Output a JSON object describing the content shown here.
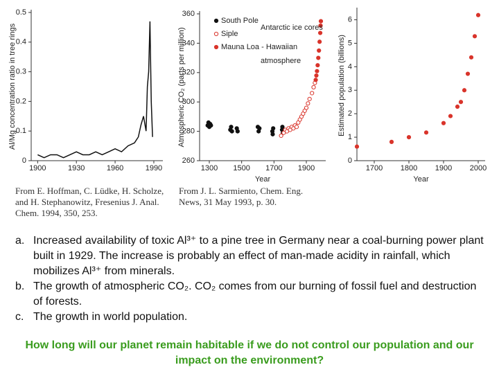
{
  "chart_data": [
    {
      "type": "line",
      "ylabel": "Al/Mg concentration ratio in tree rings",
      "xlim": [
        1895,
        1997
      ],
      "xticks": [
        1900,
        1930,
        1960,
        1990
      ],
      "ylim": [
        0,
        0.5
      ],
      "yticks": [
        0,
        0.1,
        0.2,
        0.3,
        0.4,
        0.5
      ],
      "series": [
        {
          "color": "#111111",
          "x": [
            1900,
            1905,
            1910,
            1915,
            1920,
            1925,
            1930,
            1935,
            1940,
            1945,
            1950,
            1955,
            1960,
            1965,
            1970,
            1975,
            1978,
            1980,
            1982,
            1984,
            1985,
            1986,
            1987,
            1988,
            1989
          ],
          "values": [
            0.02,
            0.01,
            0.02,
            0.02,
            0.01,
            0.02,
            0.03,
            0.02,
            0.02,
            0.03,
            0.02,
            0.03,
            0.04,
            0.03,
            0.05,
            0.06,
            0.08,
            0.12,
            0.15,
            0.1,
            0.25,
            0.3,
            0.47,
            0.2,
            0.08
          ]
        }
      ]
    },
    {
      "type": "scatter",
      "ylabel": "Atmospheric CO₂ (parts per million)",
      "xlabel": "Year",
      "xlim": [
        1240,
        2020
      ],
      "xticks": [
        1300,
        1500,
        1700,
        1900
      ],
      "ylim": [
        260,
        360
      ],
      "yticks": [
        260,
        280,
        300,
        320,
        340,
        360
      ],
      "annotations": [
        {
          "text": "Antarctic ice cores",
          "color": "#d9342b"
        },
        {
          "text": "atmosphere",
          "color": "#111111"
        }
      ],
      "series": [
        {
          "name": "South Pole",
          "color": "#111111",
          "marker": "filled",
          "x": [
            1290,
            1295,
            1300,
            1305,
            1310,
            1430,
            1435,
            1440,
            1470,
            1475,
            1600,
            1605,
            1610,
            1690,
            1692,
            1695,
            1750,
            1752,
            1755
          ],
          "values": [
            284,
            286,
            283,
            285,
            284,
            281,
            283,
            280,
            282,
            280,
            283,
            280,
            282,
            280,
            278,
            282,
            281,
            283,
            279
          ]
        },
        {
          "name": "Siple",
          "color": "#d9342b",
          "marker": "open",
          "x": [
            1744,
            1760,
            1770,
            1780,
            1790,
            1800,
            1810,
            1820,
            1830,
            1840,
            1850,
            1860,
            1870,
            1880,
            1890,
            1900,
            1910,
            1920,
            1935,
            1945,
            1953
          ],
          "values": [
            277,
            279,
            281,
            280,
            282,
            281,
            283,
            282,
            284,
            283,
            286,
            288,
            290,
            292,
            294,
            296,
            299,
            302,
            306,
            310,
            313
          ]
        },
        {
          "name": "Mauna Loa - Hawaiian",
          "color": "#d9342b",
          "marker": "filled",
          "x": [
            1958,
            1962,
            1966,
            1970,
            1974,
            1978,
            1982,
            1986,
            1988,
            1990
          ],
          "values": [
            315,
            318,
            321,
            325,
            330,
            335,
            341,
            347,
            352,
            355
          ]
        }
      ]
    },
    {
      "type": "scatter",
      "ylabel": "Estimated population (billions)",
      "xlabel": "Year",
      "xlim": [
        1650,
        2020
      ],
      "xticks": [
        1700,
        1800,
        1900,
        2000
      ],
      "ylim": [
        0,
        6.4
      ],
      "yticks": [
        0,
        1,
        2,
        3,
        4,
        5,
        6
      ],
      "series": [
        {
          "color": "#d9342b",
          "marker": "filled",
          "x": [
            1650,
            1750,
            1800,
            1850,
            1900,
            1920,
            1940,
            1950,
            1960,
            1970,
            1980,
            1990,
            2000
          ],
          "values": [
            0.6,
            0.8,
            1.0,
            1.2,
            1.6,
            1.9,
            2.3,
            2.5,
            3.0,
            3.7,
            4.4,
            5.3,
            6.2
          ]
        }
      ]
    }
  ],
  "credits": [
    "From E. Hoffman, C. Lüdke, H. Scholze, and H. Stephanowitz, Fresenius J. Anal. Chem. 1994, 350, 253.",
    "From J. L. Sarmiento, Chem. Eng. News, 31 May 1993, p. 30."
  ],
  "captions": [
    {
      "marker": "a.",
      "text": "Increased availability of toxic Al³⁺ to a pine tree in Germany near a coal-burning power plant built in 1929. The increase is probably an effect of man-made acidity in rainfall, which mobilizes Al³⁺ from minerals."
    },
    {
      "marker": "b.",
      "text": "The growth of atmospheric CO₂. CO₂ comes from our burning of fossil fuel and destruction of forests."
    },
    {
      "marker": "c.",
      "text": "The growth in world population."
    }
  ],
  "question": "How long will our planet remain habitable if we do not control our population and our impact on the environment?"
}
